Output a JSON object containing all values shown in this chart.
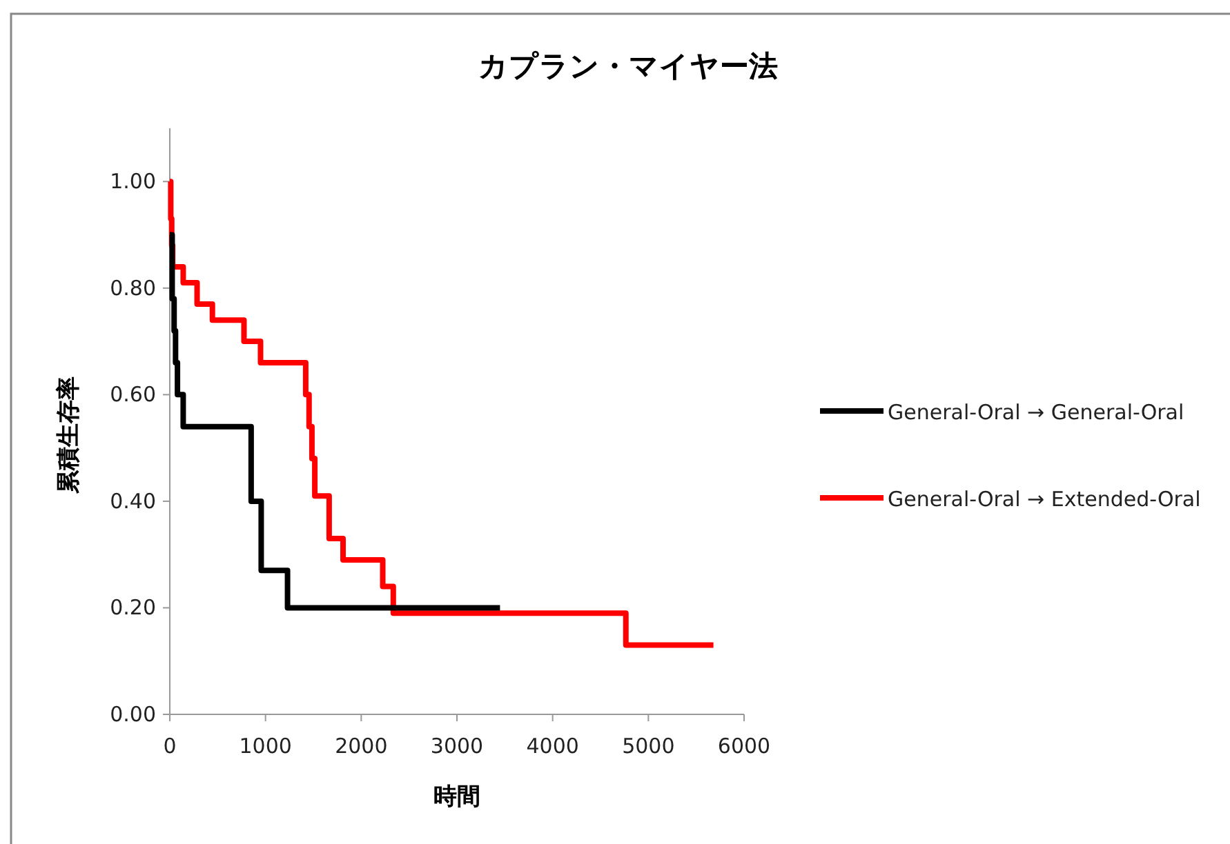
{
  "chart_data": {
    "type": "step",
    "title": "カプラン・マイヤー法",
    "xlabel": "時間",
    "ylabel": "累積生存率",
    "xlim": [
      0,
      6000
    ],
    "xticks": [
      0,
      1000,
      2000,
      3000,
      4000,
      5000,
      6000
    ],
    "ylim": [
      0,
      1.1
    ],
    "yticks": [
      {
        "value": 0,
        "label": "0.00"
      },
      {
        "value": 0.2,
        "label": "0.20"
      },
      {
        "value": 0.4,
        "label": "0.40"
      },
      {
        "value": 0.6,
        "label": "0.60"
      },
      {
        "value": 0.8,
        "label": "0.80"
      },
      {
        "value": 1,
        "label": "1.00"
      }
    ],
    "grid": false,
    "legend": "right",
    "marker": "none",
    "line_style": "solid",
    "series": [
      {
        "name": "General-Oral → General-Oral",
        "color": "#000000",
        "x": [
          0,
          25,
          45,
          60,
          80,
          140,
          850,
          955,
          1230,
          3450
        ],
        "values": [
          0.9,
          0.78,
          0.72,
          0.66,
          0.6,
          0.54,
          0.4,
          0.27,
          0.2,
          0.2
        ]
      },
      {
        "name": "General-Oral → Extended-Oral",
        "color": "#ff0000",
        "x": [
          0,
          10,
          20,
          30,
          140,
          285,
          445,
          775,
          948,
          1420,
          1455,
          1485,
          1515,
          1665,
          1810,
          2225,
          2335,
          4765,
          5680
        ],
        "values": [
          1.0,
          0.93,
          0.88,
          0.84,
          0.81,
          0.77,
          0.74,
          0.7,
          0.66,
          0.6,
          0.54,
          0.48,
          0.41,
          0.33,
          0.29,
          0.24,
          0.19,
          0.13,
          0.13
        ]
      }
    ]
  }
}
